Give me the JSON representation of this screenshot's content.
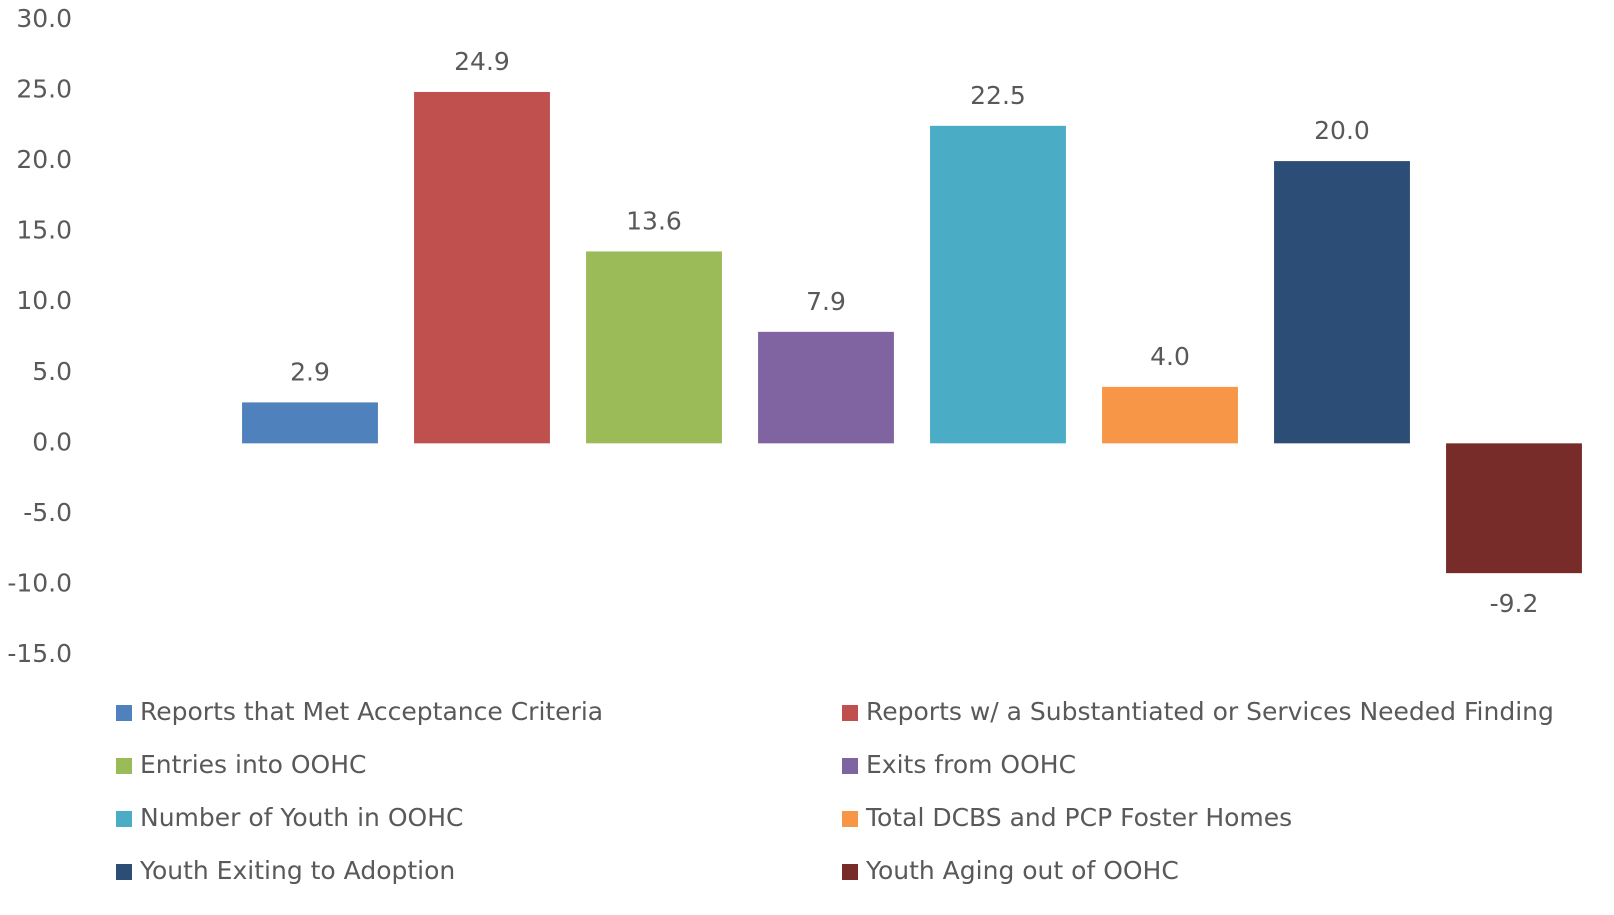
{
  "chart_data": {
    "type": "bar",
    "series": [
      {
        "name": "Reports that Met Acceptance Criteria",
        "color": "#4f81bd",
        "values": [
          2.9
        ],
        "value_labels": [
          "2.9"
        ]
      },
      {
        "name": "Reports w/ a Substantiated or Services Needed Finding",
        "color": "#c0504d",
        "values": [
          24.9
        ],
        "value_labels": [
          "24.9"
        ]
      },
      {
        "name": "Entries into OOHC",
        "color": "#9bbb59",
        "values": [
          13.6
        ],
        "value_labels": [
          "13.6"
        ]
      },
      {
        "name": "Exits from OOHC",
        "color": "#8064a2",
        "values": [
          7.9
        ],
        "value_labels": [
          "7.9"
        ]
      },
      {
        "name": "Number of Youth in OOHC",
        "color": "#4bacc6",
        "values": [
          22.5
        ],
        "value_labels": [
          "22.5"
        ]
      },
      {
        "name": "Total DCBS and PCP Foster Homes",
        "color": "#f79646",
        "values": [
          4.0
        ],
        "value_labels": [
          "4.0"
        ]
      },
      {
        "name": "Youth Exiting to Adoption",
        "color": "#2c4d75",
        "values": [
          20.0
        ],
        "value_labels": [
          "20.0"
        ]
      },
      {
        "name": "Youth Aging out of OOHC",
        "color": "#772c2a",
        "values": [
          -9.2
        ],
        "value_labels": [
          "-9.2"
        ]
      }
    ],
    "ylim": [
      -15,
      30
    ],
    "yticks": [
      {
        "value": -15,
        "label": "-15.0"
      },
      {
        "value": -10,
        "label": "-10.0"
      },
      {
        "value": -5,
        "label": "-5.0"
      },
      {
        "value": 0,
        "label": "0.0"
      },
      {
        "value": 5,
        "label": "5.0"
      },
      {
        "value": 10,
        "label": "10.0"
      },
      {
        "value": 15,
        "label": "15.0"
      },
      {
        "value": 20,
        "label": "20.0"
      },
      {
        "value": 25,
        "label": "25.0"
      },
      {
        "value": 30,
        "label": "30.0"
      }
    ],
    "legend": "bottom"
  }
}
